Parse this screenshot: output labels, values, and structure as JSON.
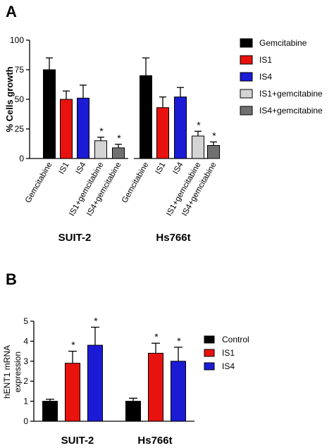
{
  "chart_data": [
    {
      "panel": "A",
      "type": "bar",
      "ylabel": "% Cells growth",
      "ylim": [
        0,
        100
      ],
      "yticks": [
        "0",
        "25",
        "50",
        "75",
        "100"
      ],
      "groups": [
        "SUIT-2",
        "Hs766t"
      ],
      "categories": [
        "Gemcitabine",
        "IS1",
        "IS4",
        "IS1+gemcitabine",
        "IS4+gemcitabine"
      ],
      "colors": [
        "#000000",
        "#e8120f",
        "#1b1bd6",
        "#d4d4d4",
        "#707070"
      ],
      "series": [
        {
          "group": "SUIT-2",
          "values": [
            75,
            50,
            51,
            15,
            9
          ],
          "errors": [
            10,
            7,
            11,
            3,
            3
          ],
          "significance": [
            "",
            "",
            "",
            "*",
            "*"
          ]
        },
        {
          "group": "Hs766t",
          "values": [
            70,
            43,
            52,
            19,
            11
          ],
          "errors": [
            15,
            9,
            8,
            4,
            3
          ],
          "significance": [
            "",
            "",
            "",
            "*",
            "*"
          ]
        }
      ],
      "legend": [
        "Gemcitabine",
        "IS1",
        "IS4",
        "IS1+gemcitabine",
        "IS4+gemcitabine"
      ]
    },
    {
      "panel": "B",
      "type": "bar",
      "ylabel_lines": [
        "hENT1 mRNA",
        "expression"
      ],
      "ylim": [
        0,
        5
      ],
      "yticks": [
        "0",
        "1",
        "2",
        "3",
        "4",
        "5"
      ],
      "groups": [
        "SUIT-2",
        "Hs766t"
      ],
      "colors": [
        "#000000",
        "#e8120f",
        "#1b1bd6"
      ],
      "series": [
        {
          "name": "Control",
          "values": [
            1.0,
            1.0
          ],
          "errors": [
            0.1,
            0.15
          ],
          "significance": [
            "",
            ""
          ]
        },
        {
          "name": "IS1",
          "values": [
            2.9,
            3.4
          ],
          "errors": [
            0.6,
            0.5
          ],
          "significance": [
            "*",
            "*"
          ]
        },
        {
          "name": "IS4",
          "values": [
            3.8,
            3.0
          ],
          "errors": [
            0.9,
            0.7
          ],
          "significance": [
            "*",
            "*"
          ]
        }
      ],
      "legend": [
        "Control",
        "IS1",
        "IS4"
      ]
    }
  ]
}
